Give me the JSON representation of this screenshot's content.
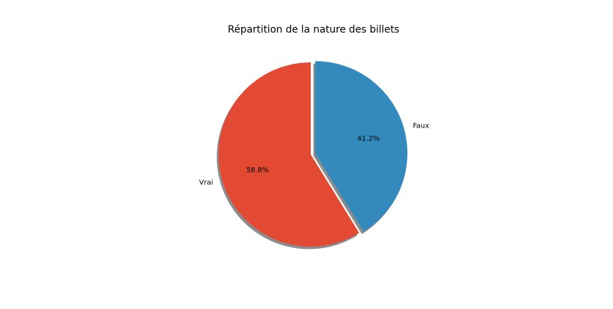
{
  "chart_data": {
    "type": "pie",
    "title": "Répartition de la nature des billets",
    "slices": [
      {
        "label": "Faux",
        "value": 41.2,
        "pct_label": "41.2%",
        "color": "#348abd",
        "exploded": true
      },
      {
        "label": "Vrai",
        "value": 58.8,
        "pct_label": "58.8%",
        "color": "#e24a33",
        "exploded": false
      }
    ],
    "start_angle_deg": 90,
    "direction": "clockwise",
    "shadow": true
  }
}
